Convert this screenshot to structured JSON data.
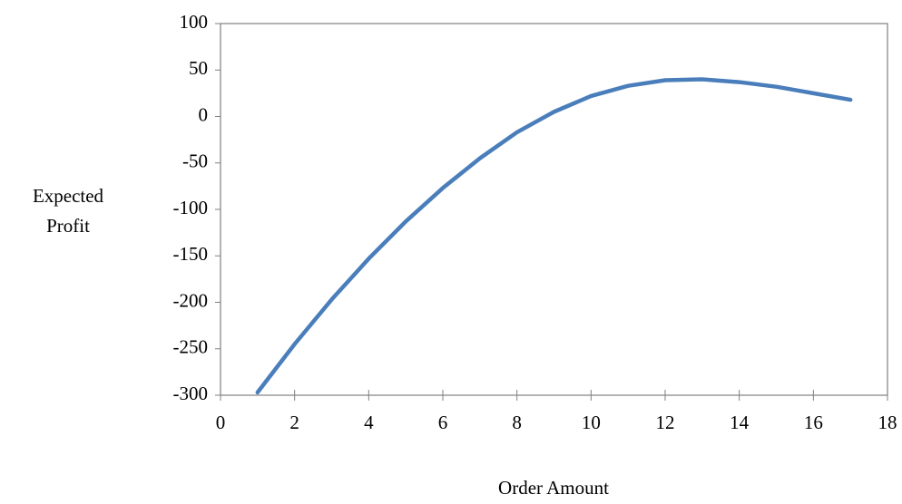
{
  "chart_data": {
    "type": "line",
    "x_label": "Order Amount",
    "y_label": "Expected Profit",
    "x": [
      1,
      2,
      3,
      4,
      5,
      6,
      7,
      8,
      9,
      10,
      11,
      12,
      13,
      14,
      15,
      16,
      17
    ],
    "series": [
      {
        "name": "Expected Profit",
        "color": "#4a7ebb",
        "values": [
          -297,
          -245,
          -197,
          -153,
          -113,
          -77,
          -45,
          -17,
          5,
          22,
          33,
          39,
          40,
          37,
          32,
          25,
          18
        ]
      }
    ],
    "xlim": [
      0,
      18
    ],
    "xticks": [
      0,
      2,
      4,
      6,
      8,
      10,
      12,
      14,
      16,
      18
    ],
    "ylim": [
      -300,
      100
    ],
    "yticks": [
      -300,
      -250,
      -200,
      -150,
      -100,
      -50,
      0,
      50,
      100
    ],
    "grid": false
  }
}
